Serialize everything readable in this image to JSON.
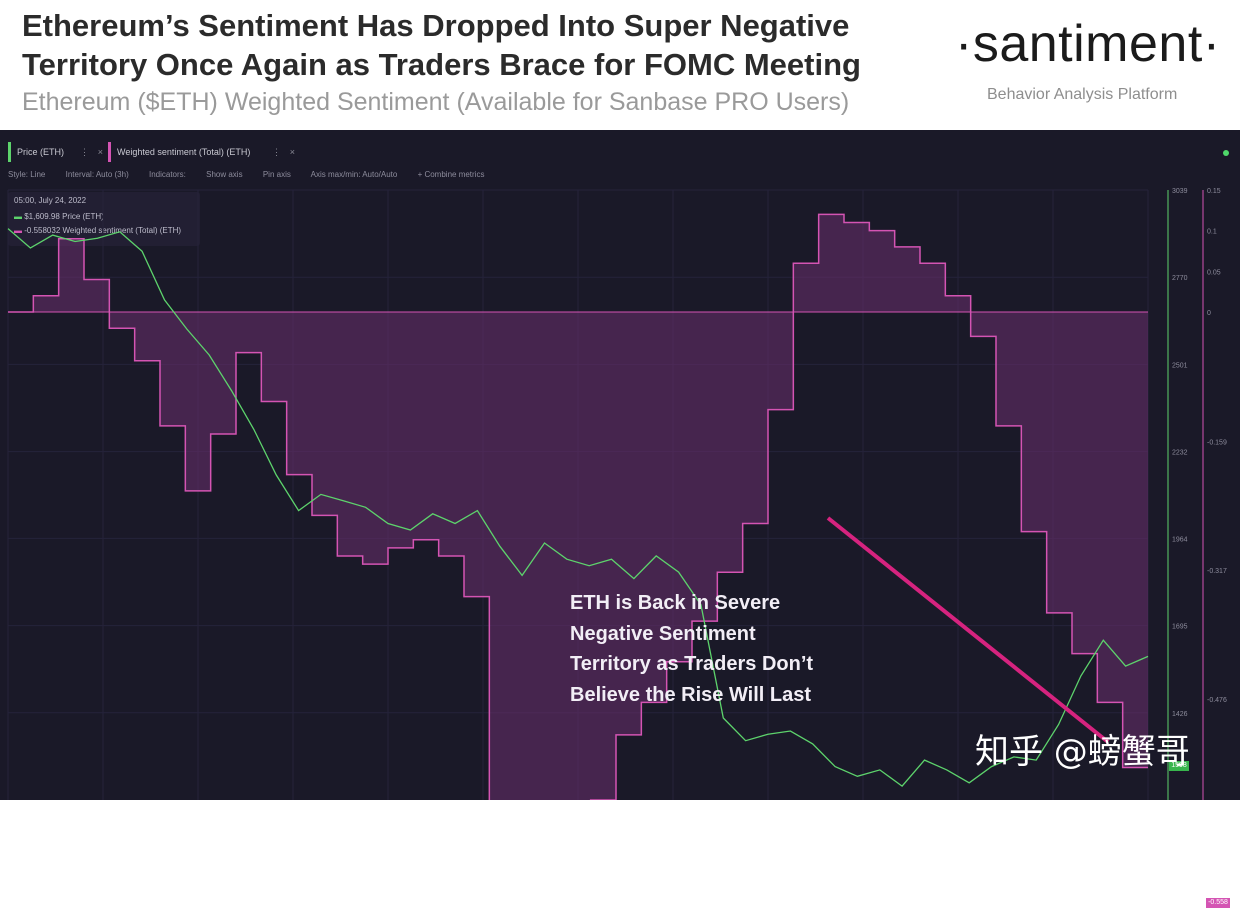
{
  "header": {
    "title_line1": "Ethereum’s Sentiment Has Dropped Into Super Negative",
    "title_line2": "Territory Once Again as Traders Brace for FOMC Meeting",
    "subtitle": "Ethereum ($ETH) Weighted Sentiment (Available for Sanbase PRO Users)",
    "logo": "·santiment·",
    "logo_tagline": "Behavior Analysis Platform"
  },
  "tabs": [
    {
      "label": "Price (ETH)",
      "color": "#5dd36c"
    },
    {
      "label": "Weighted sentiment (Total) (ETH)",
      "color": "#d454b3"
    }
  ],
  "toolbar": {
    "style": "Style: Line",
    "interval": "Interval: Auto (3h)",
    "indicators": "Indicators:",
    "show_axis": "Show axis",
    "pin_axis": "Pin axis",
    "axis_minmax": "Axis max/min: Auto/Auto",
    "combine": "+ Combine metrics"
  },
  "tooltip": {
    "date": "05:00, July 24, 2022",
    "price_value": "$1,609.98",
    "price_label": "Price (ETH)",
    "sentiment_value": "-0.558032",
    "sentiment_label": "Weighted sentiment (Total) (ETH)"
  },
  "annotation": {
    "line1": "ETH is Back in Severe",
    "line2": "Negative Sentiment",
    "line3": "Territory as Traders Don’t",
    "line4": "Believe the Rise Will Last"
  },
  "watermark": "知乎 @螃蟹哥",
  "chart_data": {
    "type": "line",
    "title": "Ethereum’s Sentiment Has Dropped Into Super Negative Territory Once Again as Traders Brace for FOMC Meeting",
    "xlabel": "",
    "ylabel": "",
    "grid": true,
    "legend_placement": "top-left",
    "price_axis": {
      "ticks": [
        3039,
        2770,
        2501,
        2232,
        1964,
        1695,
        1426
      ],
      "ylim": [
        1157,
        3039
      ]
    },
    "sentiment_axis": {
      "ticks": [
        0.15,
        0.1,
        0.05,
        0,
        -0.159,
        -0.317,
        -0.476
      ],
      "ylim": [
        -0.6,
        0.15
      ]
    },
    "current_price_badge": "1598",
    "current_sentiment_badge": "-0.558",
    "series": [
      {
        "name": "Price (ETH)",
        "color": "#5dd36c",
        "values": [
          2920,
          2860,
          2900,
          2880,
          2890,
          2910,
          2850,
          2700,
          2610,
          2530,
          2420,
          2300,
          2160,
          2050,
          2100,
          2080,
          2060,
          2010,
          1990,
          2040,
          2010,
          2050,
          1940,
          1850,
          1950,
          1900,
          1880,
          1900,
          1840,
          1910,
          1860,
          1760,
          1410,
          1340,
          1360,
          1370,
          1330,
          1260,
          1230,
          1250,
          1200,
          1280,
          1250,
          1210,
          1260,
          1290,
          1280,
          1390,
          1540,
          1650,
          1570,
          1600
        ]
      },
      {
        "name": "Weighted sentiment (Total) (ETH)",
        "color": "#d454b3",
        "values": [
          0,
          0.02,
          0.09,
          0.04,
          -0.02,
          -0.06,
          -0.14,
          -0.22,
          -0.15,
          -0.05,
          -0.11,
          -0.2,
          -0.25,
          -0.3,
          -0.31,
          -0.29,
          -0.28,
          -0.3,
          -0.35,
          -0.63,
          -0.66,
          -0.68,
          -0.67,
          -0.6,
          -0.52,
          -0.48,
          -0.43,
          -0.38,
          -0.32,
          -0.26,
          -0.12,
          0.06,
          0.12,
          0.11,
          0.1,
          0.08,
          0.06,
          0.02,
          -0.03,
          -0.14,
          -0.27,
          -0.37,
          -0.42,
          -0.48,
          -0.56
        ]
      }
    ]
  }
}
